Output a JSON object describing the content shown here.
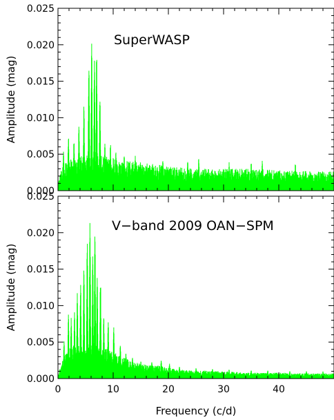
{
  "colors": {
    "series": "#00ff00",
    "axis": "#000000",
    "background": "#ffffff"
  },
  "chart_data": [
    {
      "type": "line",
      "title": "SuperWASP",
      "xlabel": "",
      "ylabel": "Amplitude (mag)",
      "xlim": [
        0,
        50
      ],
      "ylim": [
        0,
        0.025
      ],
      "yticks": [
        "0.000",
        "0.005",
        "0.010",
        "0.015",
        "0.020",
        "0.025"
      ],
      "grid": false,
      "series": [
        {
          "color": "#00ff00",
          "baseline_envelope": [
            [
              0,
              0.001
            ],
            [
              0.8,
              0.0035
            ],
            [
              1.5,
              0.004
            ],
            [
              3,
              0.0045
            ],
            [
              5,
              0.005
            ],
            [
              8,
              0.0048
            ],
            [
              10,
              0.0045
            ],
            [
              13,
              0.004
            ],
            [
              17,
              0.0038
            ],
            [
              20,
              0.0033
            ],
            [
              25,
              0.003
            ],
            [
              30,
              0.003
            ],
            [
              35,
              0.003
            ],
            [
              40,
              0.0028
            ],
            [
              45,
              0.0027
            ],
            [
              50,
              0.0026
            ]
          ],
          "peaks": [
            [
              1.0,
              0.0055
            ],
            [
              1.9,
              0.0078
            ],
            [
              2.9,
              0.0072
            ],
            [
              3.8,
              0.0095
            ],
            [
              4.7,
              0.012
            ],
            [
              5.6,
              0.018
            ],
            [
              6.1,
              0.021
            ],
            [
              6.6,
              0.0185
            ],
            [
              7.0,
              0.0197
            ],
            [
              7.6,
              0.0141
            ],
            [
              8.5,
              0.0075
            ],
            [
              9.5,
              0.0068
            ],
            [
              10.5,
              0.0055
            ],
            [
              12,
              0.005
            ],
            [
              14,
              0.0048
            ],
            [
              19,
              0.0047
            ],
            [
              23.5,
              0.0045
            ],
            [
              25.5,
              0.0046
            ],
            [
              31,
              0.004
            ],
            [
              35,
              0.004
            ],
            [
              37,
              0.0042
            ],
            [
              43,
              0.004
            ]
          ]
        }
      ]
    },
    {
      "type": "line",
      "title": "V−band 2009 OAN−SPM",
      "xlabel": "Frequency (c/d)",
      "ylabel": "Amplitude (mag)",
      "xlim": [
        0,
        50
      ],
      "xticks": [
        "0",
        "10",
        "20",
        "30",
        "40"
      ],
      "ylim": [
        0,
        0.025
      ],
      "yticks": [
        "0.000",
        "0.005",
        "0.010",
        "0.015",
        "0.020",
        "0.025"
      ],
      "grid": false,
      "series": [
        {
          "color": "#00ff00",
          "baseline_envelope": [
            [
              0,
              0.0005
            ],
            [
              1,
              0.003
            ],
            [
              2,
              0.004
            ],
            [
              3,
              0.0048
            ],
            [
              5,
              0.005
            ],
            [
              7,
              0.0048
            ],
            [
              9,
              0.004
            ],
            [
              11,
              0.0033
            ],
            [
              13,
              0.0025
            ],
            [
              15,
              0.002
            ],
            [
              18,
              0.0018
            ],
            [
              22,
              0.0012
            ],
            [
              26,
              0.0011
            ],
            [
              30,
              0.001
            ],
            [
              35,
              0.0008
            ],
            [
              40,
              0.0008
            ],
            [
              45,
              0.0007
            ],
            [
              50,
              0.0007
            ]
          ],
          "peaks": [
            [
              1.1,
              0.0052
            ],
            [
              1.9,
              0.0088
            ],
            [
              2.4,
              0.0085
            ],
            [
              3.0,
              0.0092
            ],
            [
              3.5,
              0.013
            ],
            [
              4.1,
              0.0135
            ],
            [
              4.7,
              0.016
            ],
            [
              5.3,
              0.0196
            ],
            [
              5.8,
              0.022
            ],
            [
              6.3,
              0.0175
            ],
            [
              6.7,
              0.021
            ],
            [
              7.1,
              0.0155
            ],
            [
              7.7,
              0.0148
            ],
            [
              8.3,
              0.0088
            ],
            [
              9.1,
              0.0085
            ],
            [
              10.1,
              0.0078
            ],
            [
              11.3,
              0.005
            ],
            [
              12.3,
              0.0038
            ],
            [
              13.5,
              0.0032
            ],
            [
              15,
              0.0025
            ],
            [
              17,
              0.0023
            ],
            [
              18.7,
              0.0028
            ],
            [
              20.2,
              0.0022
            ],
            [
              22,
              0.0018
            ],
            [
              25,
              0.0015
            ],
            [
              28,
              0.0014
            ],
            [
              31,
              0.0013
            ],
            [
              35,
              0.0012
            ],
            [
              38,
              0.0012
            ],
            [
              42,
              0.0011
            ],
            [
              45,
              0.0011
            ],
            [
              48,
              0.001
            ]
          ]
        }
      ]
    }
  ]
}
